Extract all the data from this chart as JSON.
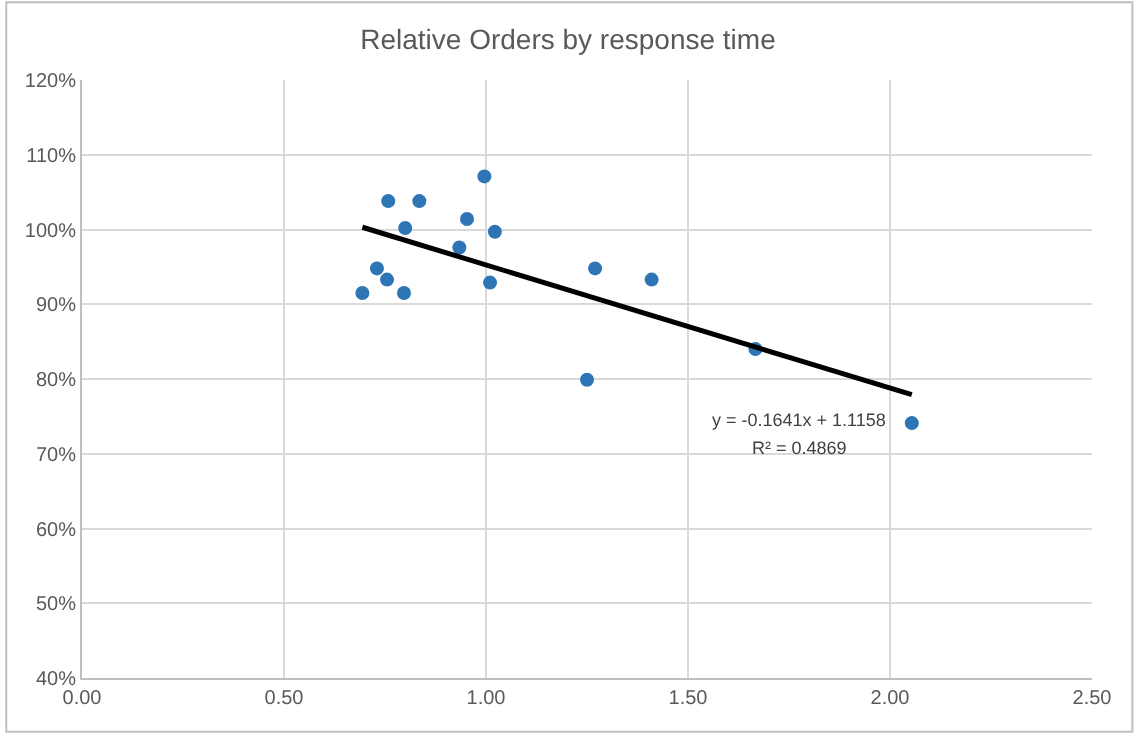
{
  "chart_data": {
    "type": "scatter",
    "title": "Relative Orders by response time",
    "series": [
      {
        "color": "#2e75b6",
        "marker": "circle",
        "x": [
          0.694,
          0.73,
          0.755,
          0.758,
          0.797,
          0.8,
          0.835,
          0.934,
          0.953,
          0.996,
          1.01,
          1.022,
          1.25,
          1.27,
          1.41,
          1.667,
          2.054
        ],
        "values": [
          0.915,
          0.948,
          0.933,
          1.038,
          0.915,
          1.002,
          1.038,
          0.976,
          1.014,
          1.071,
          0.929,
          0.997,
          0.799,
          0.948,
          0.933,
          0.84,
          0.741
        ]
      },
      {
        "type": "line",
        "color": "#000000",
        "marker": "none",
        "line_style": "solid",
        "x": [
          0.694,
          2.054
        ],
        "values": [
          1.003,
          0.779
        ]
      }
    ],
    "annotations": [
      "y = -0.1641x + 1.1158",
      "R² = 0.4869"
    ],
    "xlim": [
      0,
      2.5
    ],
    "xticks": [
      {
        "value": 0,
        "label": "0.00"
      },
      {
        "value": 0.5,
        "label": "0.50"
      },
      {
        "value": 1,
        "label": "1.00"
      },
      {
        "value": 1.5,
        "label": "1.50"
      },
      {
        "value": 2,
        "label": "2.00"
      },
      {
        "value": 2.5,
        "label": "2.50"
      }
    ],
    "ylim": [
      0.4,
      1.2
    ],
    "yticks": [
      {
        "value": 0.4,
        "label": "40%"
      },
      {
        "value": 0.5,
        "label": "50%"
      },
      {
        "value": 0.6,
        "label": "60%"
      },
      {
        "value": 0.7,
        "label": "70%"
      },
      {
        "value": 0.8,
        "label": "80%"
      },
      {
        "value": 0.9,
        "label": "90%"
      },
      {
        "value": 1.0,
        "label": "100%"
      },
      {
        "value": 1.1,
        "label": "110%"
      },
      {
        "value": 1.2,
        "label": "120%"
      }
    ],
    "grid": true
  }
}
